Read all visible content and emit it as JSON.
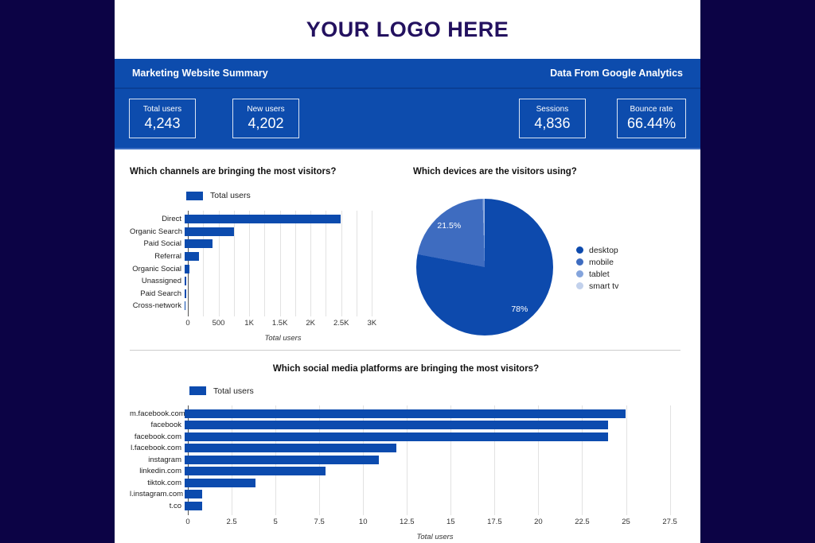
{
  "logo": {
    "text": "YOUR LOGO HERE"
  },
  "banner": {
    "title": "Marketing Website Summary",
    "source": "Data From Google Analytics",
    "kpis": [
      {
        "label": "Total users",
        "value": "4,243"
      },
      {
        "label": "New users",
        "value": "4,202"
      },
      {
        "label": "Sessions",
        "value": "4,836"
      },
      {
        "label": "Bounce rate",
        "value": "66.44%"
      }
    ]
  },
  "colors": {
    "outer_background": "#0c0345",
    "banner_blue": "#0d4cad",
    "bar_blue": "#0c4bae",
    "logo_navy": "#23115f"
  },
  "chart_data": [
    {
      "id": "channels",
      "type": "bar",
      "orientation": "horizontal",
      "title": "Which channels are bringing the most visitors?",
      "legend_label": "Total users",
      "legend_position": "top",
      "grid": true,
      "categories": [
        "Direct",
        "Organic Search",
        "Paid Social",
        "Referral",
        "Organic Social",
        "Unassigned",
        "Paid Search",
        "Cross-network"
      ],
      "values": [
        2500,
        790,
        450,
        230,
        75,
        30,
        20,
        5
      ],
      "xlabel": "Total users",
      "xlim": [
        0,
        3100
      ],
      "grid_step": 250,
      "bar_color": "#0c4bae",
      "ticks": [
        {
          "v": 0,
          "label": "0"
        },
        {
          "v": 500,
          "label": "500"
        },
        {
          "v": 1000,
          "label": "1K"
        },
        {
          "v": 1500,
          "label": "1.5K"
        },
        {
          "v": 2000,
          "label": "2K"
        },
        {
          "v": 2500,
          "label": "2.5K"
        },
        {
          "v": 3000,
          "label": "3K"
        }
      ]
    },
    {
      "id": "devices",
      "type": "pie",
      "title": "Which devices are the visitors using?",
      "legend_position": "right",
      "slices": [
        {
          "name": "desktop",
          "pct": 78,
          "label": "78%",
          "color": "#0d4aad"
        },
        {
          "name": "mobile",
          "pct": 21.5,
          "label": "21.5%",
          "color": "#3e6cc0"
        },
        {
          "name": "tablet",
          "pct": 0.4,
          "label": "",
          "color": "#84a4dc"
        },
        {
          "name": "smart tv",
          "pct": 0.1,
          "label": "",
          "color": "#c2d1ec"
        }
      ]
    },
    {
      "id": "social",
      "type": "bar",
      "orientation": "horizontal",
      "title": "Which social media platforms are bringing the most visitors?",
      "legend_label": "Total users",
      "legend_position": "top",
      "grid": true,
      "categories": [
        "m.facebook.com",
        "facebook",
        "facebook.com",
        "l.facebook.com",
        "instagram",
        "linkedin.com",
        "tiktok.com",
        "l.instagram.com",
        "t.co"
      ],
      "values": [
        25,
        24,
        24,
        12,
        11,
        8,
        4,
        1,
        1
      ],
      "xlabel": "Total users",
      "xlim": [
        0,
        28.2
      ],
      "grid_step": 2.5,
      "bar_color": "#0c4bae",
      "ticks": [
        {
          "v": 0,
          "label": "0"
        },
        {
          "v": 2.5,
          "label": "2.5"
        },
        {
          "v": 5,
          "label": "5"
        },
        {
          "v": 7.5,
          "label": "7.5"
        },
        {
          "v": 10,
          "label": "10"
        },
        {
          "v": 12.5,
          "label": "12.5"
        },
        {
          "v": 15,
          "label": "15"
        },
        {
          "v": 17.5,
          "label": "17.5"
        },
        {
          "v": 20,
          "label": "20"
        },
        {
          "v": 22.5,
          "label": "22.5"
        },
        {
          "v": 25,
          "label": "25"
        },
        {
          "v": 27.5,
          "label": "27.5"
        }
      ]
    }
  ]
}
